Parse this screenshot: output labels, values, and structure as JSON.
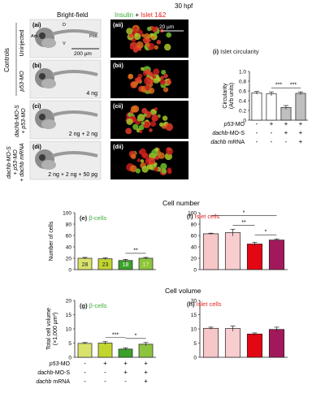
{
  "header": {
    "time": "30 hpf",
    "brightfield": "Bright-field",
    "insulin": "Insulin",
    "plus": " + ",
    "islet12": "Islet 1&2"
  },
  "colors": {
    "green_label": "#3aaa35",
    "red_label": "#e52421",
    "dark": "#231f20"
  },
  "side_labels": {
    "controls": "Controls",
    "uninjected": "Uninjected",
    "p53mo": "p53-MO",
    "dachb_mos_p53": [
      "dachb-MO-S",
      "+ p53-MO"
    ],
    "dachb_mos_full": [
      "dachb-MO-S",
      "+ p53-MO",
      "+ dachb mRNA"
    ]
  },
  "panels": [
    {
      "id": "(ai)",
      "fl_id": "(aii)",
      "annot": [
        "Ant.",
        "D",
        "V",
        "Pos."
      ],
      "scale_bf": "200 µm",
      "scale_fl": "20 µm",
      "dose": ""
    },
    {
      "id": "(bi)",
      "fl_id": "(bii)",
      "dose": "4 ng"
    },
    {
      "id": "(ci)",
      "fl_id": "(cii)",
      "dose": "2 ng + 2 ng"
    },
    {
      "id": "(di)",
      "fl_id": "(dii)",
      "dose": "2 ng + 2 ng + 50 pg"
    }
  ],
  "titles": {
    "cell_number": "Cell number",
    "cell_volume": "Cell volume"
  },
  "table_rows": [
    {
      "label": "p53-MO",
      "signs": [
        "-",
        "+",
        "+",
        "+"
      ]
    },
    {
      "label": "dachb-MO-S",
      "signs": [
        "-",
        "-",
        "+",
        "+"
      ]
    },
    {
      "label": "dachb mRNA",
      "signs": [
        "-",
        "-",
        "-",
        "+"
      ]
    }
  ],
  "chart_data": [
    {
      "panel": "(i)",
      "title": "Islet circularity",
      "type": "bar",
      "ylabel": "Circularity (Arb units)",
      "ylim": [
        0,
        1.0
      ],
      "yticks": [
        "0",
        "0.2",
        "0.4",
        "0.6",
        "0.8",
        "1.0"
      ],
      "values": [
        0.56,
        0.54,
        0.26,
        0.55
      ],
      "errors": [
        0.03,
        0.04,
        0.04,
        0.03
      ],
      "colors": [
        "#ffffff",
        "#ffffff",
        "#bfbfbf",
        "#bfbfbf"
      ],
      "sig": [
        {
          "from": 1,
          "to": 2,
          "label": "***"
        },
        {
          "from": 2,
          "to": 3,
          "label": "***"
        }
      ]
    },
    {
      "panel": "(e)",
      "title": "β-cells",
      "type": "bar",
      "ylabel": "Number of cells",
      "ylim": [
        0,
        100
      ],
      "yticks": [
        "0",
        "20",
        "40",
        "60",
        "80",
        "100"
      ],
      "values": [
        20,
        19,
        16,
        20
      ],
      "errors": [
        1.5,
        1.5,
        2,
        1.5
      ],
      "colors": [
        "#d9e36b",
        "#c2d52f",
        "#3ba12a",
        "#8dc43f"
      ],
      "n": [
        "28",
        "23",
        "18",
        "17"
      ],
      "sig": [
        {
          "from": 2,
          "to": 3,
          "label": "**"
        }
      ]
    },
    {
      "panel": "(f)",
      "title": "Islet cells",
      "type": "bar",
      "ylabel": "",
      "ylim": [
        0,
        100
      ],
      "yticks": [
        "0",
        "20",
        "40",
        "60",
        "80",
        "100"
      ],
      "values": [
        63,
        65,
        45,
        52
      ],
      "errors": [
        1,
        6,
        3,
        2
      ],
      "colors": [
        "#f6c6c9",
        "#f8cdd0",
        "#e30613",
        "#a2195b"
      ],
      "sig": [
        {
          "from": 0,
          "to": 3,
          "label": "*"
        },
        {
          "from": 1,
          "to": 2,
          "label": "**"
        },
        {
          "from": 2,
          "to": 3,
          "label": "*"
        }
      ]
    },
    {
      "panel": "(g)",
      "title": "β-cells",
      "type": "bar",
      "ylabel": "Total cell volume (×1,000 µm³)",
      "ylim": [
        0,
        20
      ],
      "yticks": [
        "0",
        "5",
        "10",
        "15",
        "20"
      ],
      "values": [
        4.9,
        5.0,
        2.9,
        4.6
      ],
      "errors": [
        0.3,
        0.5,
        0.4,
        0.6
      ],
      "colors": [
        "#d9e36b",
        "#c2d52f",
        "#3ba12a",
        "#8dc43f"
      ],
      "sig": [
        {
          "from": 1,
          "to": 2,
          "label": "***"
        },
        {
          "from": 2,
          "to": 3,
          "label": "*"
        }
      ]
    },
    {
      "panel": "(h)",
      "title": "Islet cells",
      "type": "bar",
      "ylabel": "",
      "ylim": [
        0,
        20
      ],
      "yticks": [
        "0",
        "5",
        "10",
        "15",
        "20"
      ],
      "values": [
        10.2,
        10.1,
        8.2,
        9.8
      ],
      "errors": [
        0.4,
        0.9,
        0.4,
        0.8
      ],
      "colors": [
        "#f6c6c9",
        "#f8cdd0",
        "#e30613",
        "#a2195b"
      ],
      "sig": []
    }
  ]
}
